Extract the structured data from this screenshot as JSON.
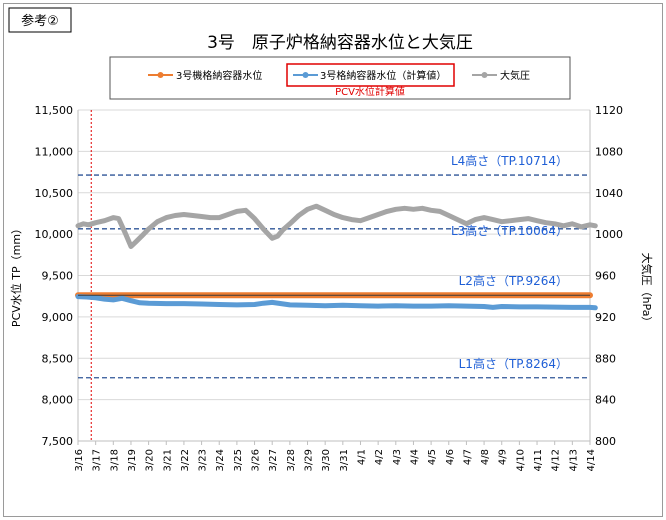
{
  "badge": "参考②",
  "chart_data": {
    "type": "line",
    "title": "3号　原子炉格納容器水位と大気圧",
    "ylabel": "PCV水位 TP（mm）",
    "y2label": "大気圧（hPa）",
    "ylim": [
      7500,
      11500
    ],
    "y2lim": [
      800,
      1120
    ],
    "yticks": [
      "7,500",
      "8,000",
      "8,500",
      "9,000",
      "9,500",
      "10,000",
      "10,500",
      "11,000",
      "11,500"
    ],
    "y2ticks": [
      "800",
      "840",
      "880",
      "920",
      "960",
      "1000",
      "1040",
      "1080",
      "1120"
    ],
    "xticks": [
      "3/16",
      "3/17",
      "3/18",
      "3/19",
      "3/20",
      "3/21",
      "3/22",
      "3/23",
      "3/24",
      "3/25",
      "3/26",
      "3/27",
      "3/28",
      "3/29",
      "3/30",
      "3/31",
      "4/1",
      "4/2",
      "4/3",
      "4/4",
      "4/5",
      "4/6",
      "4/7",
      "4/8",
      "4/9",
      "4/10",
      "4/11",
      "4/12",
      "4/13",
      "4/14"
    ],
    "legend_note": "PCV水位計算値",
    "series": [
      {
        "name": "3号機格納容器水位",
        "color": "#ED7D31",
        "axis": "left",
        "x": [
          0,
          0.5,
          1,
          1.5,
          2,
          3,
          4,
          5,
          6,
          7,
          8,
          9,
          10,
          11,
          12,
          13,
          14,
          15,
          16,
          17,
          18,
          19,
          20,
          21,
          22,
          23,
          24,
          25,
          26,
          27,
          28,
          29
        ],
        "values": [
          9262,
          9262,
          9262,
          9262,
          9261,
          9261,
          9261,
          9261,
          9261,
          9261,
          9261,
          9261,
          9261,
          9261,
          9261,
          9261,
          9261,
          9261,
          9261,
          9261,
          9261,
          9261,
          9261,
          9261,
          9261,
          9261,
          9261,
          9261,
          9261,
          9261,
          9261,
          9261
        ]
      },
      {
        "name": "3号格納容器水位（計算値）",
        "color": "#5B9BD5",
        "axis": "left",
        "x": [
          0,
          0.5,
          1,
          1.5,
          2,
          2.5,
          3,
          3.5,
          4,
          5,
          6,
          7,
          8,
          9,
          10,
          10.5,
          11,
          11.5,
          12,
          13,
          14,
          15,
          16,
          17,
          18,
          19,
          20,
          21,
          22,
          23,
          23.5,
          24,
          25,
          26,
          27,
          28,
          29,
          29.3
        ],
        "values": [
          9245,
          9240,
          9230,
          9215,
          9205,
          9225,
          9195,
          9170,
          9165,
          9160,
          9160,
          9155,
          9150,
          9145,
          9150,
          9165,
          9175,
          9160,
          9145,
          9140,
          9135,
          9140,
          9135,
          9130,
          9135,
          9130,
          9130,
          9135,
          9130,
          9125,
          9115,
          9125,
          9120,
          9120,
          9118,
          9115,
          9115,
          9110
        ]
      },
      {
        "name": "大気圧",
        "color": "#A5A5A5",
        "axis": "right",
        "x": [
          0,
          0.3,
          0.6,
          1,
          1.5,
          2,
          2.3,
          2.7,
          3,
          3.3,
          3.6,
          4,
          4.5,
          5,
          5.5,
          6,
          6.5,
          7,
          7.5,
          8,
          8.5,
          9,
          9.5,
          10,
          10.5,
          11,
          11.3,
          11.6,
          12,
          12.5,
          13,
          13.5,
          14,
          14.5,
          15,
          15.5,
          16,
          16.5,
          17,
          17.5,
          18,
          18.5,
          19,
          19.5,
          20,
          20.5,
          21,
          21.5,
          22,
          22.5,
          23,
          23.5,
          24,
          24.5,
          25,
          25.5,
          26,
          26.5,
          27,
          27.5,
          28,
          28.5,
          29,
          29.3
        ],
        "values": [
          1008,
          1010,
          1009,
          1011,
          1013,
          1016,
          1015,
          1000,
          988,
          993,
          998,
          1005,
          1012,
          1016,
          1018,
          1019,
          1018,
          1017,
          1016,
          1016,
          1019,
          1022,
          1023,
          1015,
          1005,
          996,
          998,
          1004,
          1010,
          1018,
          1024,
          1027,
          1023,
          1019,
          1016,
          1014,
          1013,
          1016,
          1019,
          1022,
          1024,
          1025,
          1024,
          1025,
          1023,
          1022,
          1018,
          1014,
          1010,
          1014,
          1016,
          1014,
          1012,
          1013,
          1014,
          1015,
          1013,
          1011,
          1010,
          1008,
          1010,
          1007,
          1009,
          1008
        ]
      }
    ],
    "reference_lines": [
      {
        "label": "L4高さ（TP.10714）",
        "value": 10714
      },
      {
        "label": "L3高さ（TP.10064）",
        "value": 10064
      },
      {
        "label": "L2高さ（TP.9264）",
        "value": 9264
      },
      {
        "label": "L1高さ（TP.8264）",
        "value": 8264
      }
    ],
    "marker_date_index": 0.75,
    "grid": "horizontal",
    "legend_position": "top"
  }
}
